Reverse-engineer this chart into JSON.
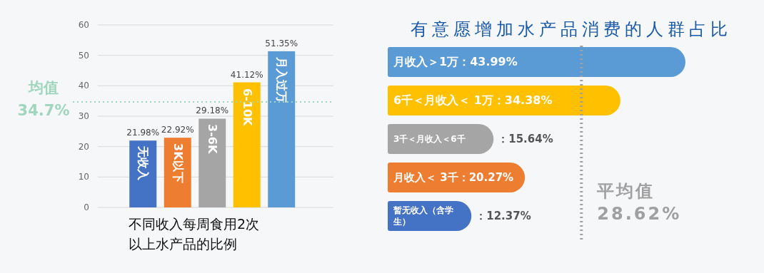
{
  "chart_data": [
    {
      "type": "bar",
      "xlabel": "不同收入每周食用2次以上水产品的比例",
      "categories": [
        "无收入",
        "3K以下",
        "3-6K",
        "6-10K",
        "月入过万"
      ],
      "values": [
        21.98,
        22.92,
        29.18,
        41.12,
        51.35
      ],
      "colors": [
        "#4472c4",
        "#ed7d31",
        "#a5a5a5",
        "#ffc000",
        "#5b9bd5"
      ],
      "value_labels": [
        "21.98%",
        "22.92%",
        "29.18%",
        "41.12%",
        "51.35%"
      ],
      "ylim": [
        0,
        60
      ],
      "yticks": [
        0,
        10,
        20,
        30,
        40,
        50,
        60
      ],
      "grid": "y",
      "ref_lines": [
        {
          "axis": "y",
          "value": 34.7,
          "label": "均值 34.7%",
          "color": "#9fd6bd",
          "line_style": "dotted"
        }
      ]
    },
    {
      "type": "bar",
      "orientation": "horizontal",
      "title": "有意愿增加水产品消费的人群占比",
      "categories": [
        "月收入＞1万",
        "6千＜月收入＜ 1万",
        "3千＜月收入＜6千",
        "月收入＜ 3千",
        "暂无收入（含学生）"
      ],
      "values": [
        43.99,
        34.38,
        15.64,
        20.27,
        12.37
      ],
      "colors": [
        "#5b9bd5",
        "#ffc000",
        "#a5a5a5",
        "#ed7d31",
        "#4472c4"
      ],
      "value_labels": [
        "：43.99%",
        "：34.38%",
        "：15.64%",
        "：20.27%",
        "：12.37%"
      ],
      "ref_lines": [
        {
          "axis": "x",
          "value": 28.62,
          "label": "平均值 28.62%",
          "color": "#a0a0a0",
          "line_style": "dotted"
        }
      ]
    }
  ]
}
